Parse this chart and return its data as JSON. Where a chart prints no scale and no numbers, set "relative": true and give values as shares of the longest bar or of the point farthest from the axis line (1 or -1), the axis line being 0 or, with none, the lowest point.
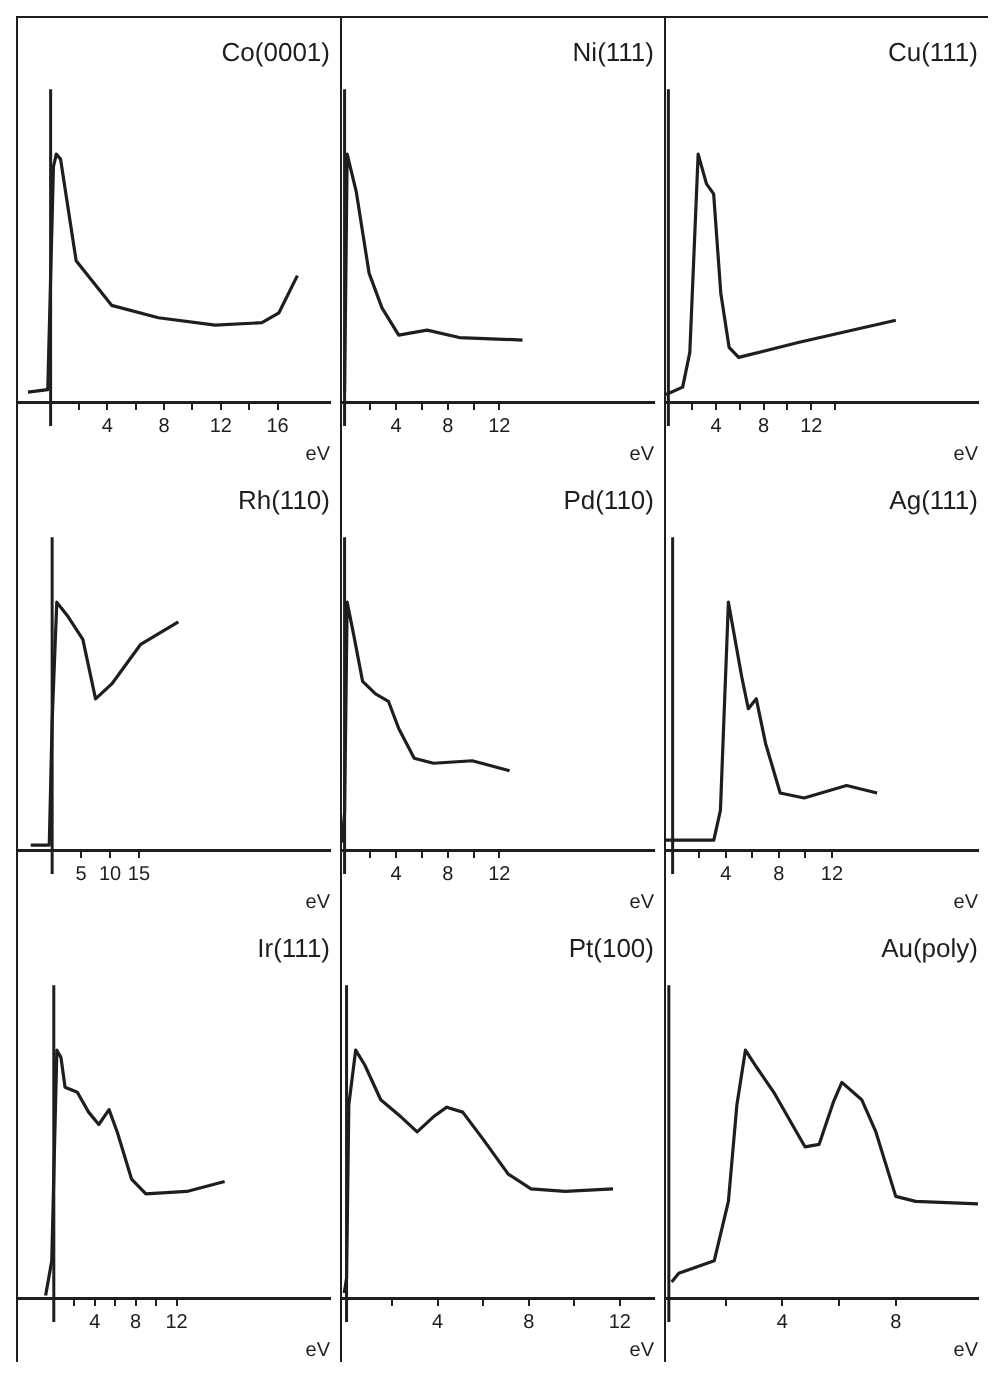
{
  "chart_data": [
    {
      "type": "line",
      "title": "Co(0001)",
      "xlabel": "eV",
      "relative": true,
      "marker": "none",
      "color": "#1e1e1e",
      "xlim": [
        -2.3,
        19.7
      ],
      "xticks": [
        {
          "value": 2,
          "label": null
        },
        4,
        {
          "value": 6,
          "label": null
        },
        8,
        {
          "value": 10,
          "label": null
        },
        12,
        {
          "value": 14,
          "label": null
        },
        16
      ],
      "ref_lines": [
        {
          "axis": "x",
          "value": 0
        }
      ],
      "x": [
        -1.6,
        -0.2,
        0.2,
        0.4,
        0.7,
        1.8,
        4.3,
        7.6,
        11.6,
        14.9,
        16.1,
        17.4
      ],
      "values": [
        0.04,
        0.05,
        0.95,
        1.0,
        0.98,
        0.57,
        0.39,
        0.34,
        0.31,
        0.32,
        0.36,
        0.51
      ]
    },
    {
      "type": "line",
      "title": "Ni(111)",
      "xlabel": "eV",
      "relative": true,
      "marker": "none",
      "color": "#1e1e1e",
      "xlim": [
        -0.2,
        24
      ],
      "xticks": [
        {
          "value": 2,
          "label": null
        },
        4,
        {
          "value": 6,
          "label": null
        },
        8,
        {
          "value": 10,
          "label": null
        },
        12
      ],
      "ref_lines": [
        {
          "axis": "x",
          "value": 0
        }
      ],
      "x": [
        0,
        0.2,
        0.9,
        1.9,
        2.9,
        4.2,
        6.4,
        8.9,
        13.8
      ],
      "values": [
        0.04,
        1.0,
        0.85,
        0.52,
        0.38,
        0.27,
        0.29,
        0.26,
        0.25
      ]
    },
    {
      "type": "line",
      "title": "Cu(111)",
      "xlabel": "eV",
      "relative": true,
      "marker": "none",
      "color": "#1e1e1e",
      "xlim": [
        -0.2,
        26
      ],
      "xticks": [
        {
          "value": 2,
          "label": null
        },
        4,
        {
          "value": 6,
          "label": null
        },
        8,
        {
          "value": 10,
          "label": null
        },
        12,
        {
          "value": 14,
          "label": null
        }
      ],
      "ref_lines": [
        {
          "axis": "x",
          "value": 0
        }
      ],
      "x": [
        -0.2,
        1.2,
        1.8,
        2.5,
        3.2,
        3.8,
        4.4,
        5.1,
        5.9,
        10.9,
        19.1
      ],
      "values": [
        0.03,
        0.06,
        0.2,
        1.0,
        0.88,
        0.84,
        0.44,
        0.22,
        0.18,
        0.24,
        0.33
      ]
    },
    {
      "type": "line",
      "title": "Rh(110)",
      "xlabel": "eV",
      "relative": true,
      "marker": "none",
      "color": "#1e1e1e",
      "xlim": [
        -5.9,
        48
      ],
      "xticks": [
        5,
        10,
        15
      ],
      "ref_lines": [
        {
          "axis": "x",
          "value": 0
        }
      ],
      "x": [
        -3.7,
        -0.5,
        0,
        0.8,
        2.8,
        5.3,
        7.5,
        10.3,
        15.3,
        21.8
      ],
      "values": [
        0.02,
        0.02,
        0.52,
        1.0,
        0.94,
        0.85,
        0.61,
        0.67,
        0.83,
        0.92
      ]
    },
    {
      "type": "line",
      "title": "Pd(110)",
      "xlabel": "eV",
      "relative": true,
      "marker": "none",
      "color": "#1e1e1e",
      "xlim": [
        -0.2,
        24
      ],
      "xticks": [
        {
          "value": 2,
          "label": null
        },
        4,
        {
          "value": 6,
          "label": null
        },
        8,
        {
          "value": 10,
          "label": null
        },
        12
      ],
      "ref_lines": [
        {
          "axis": "x",
          "value": 0
        }
      ],
      "x": [
        -0.2,
        0,
        0.2,
        0.7,
        1.4,
        2.4,
        3.4,
        4.2,
        5.4,
        6.9,
        9.9,
        12.8
      ],
      "values": [
        0.03,
        0.15,
        1.0,
        0.87,
        0.68,
        0.63,
        0.6,
        0.49,
        0.37,
        0.35,
        0.36,
        0.32
      ]
    },
    {
      "type": "line",
      "title": "Ag(111)",
      "xlabel": "eV",
      "relative": true,
      "marker": "none",
      "color": "#1e1e1e",
      "xlim": [
        -0.5,
        23
      ],
      "xticks": [
        {
          "value": 2,
          "label": null
        },
        4,
        {
          "value": 6,
          "label": null
        },
        8,
        {
          "value": 10,
          "label": null
        },
        12
      ],
      "ref_lines": [
        {
          "axis": "x",
          "value": 0
        }
      ],
      "x": [
        -0.5,
        3.1,
        3.6,
        4.2,
        5.2,
        5.7,
        6.3,
        7.0,
        8.1,
        9.9,
        13.1,
        15.4
      ],
      "values": [
        0.04,
        0.04,
        0.16,
        1.0,
        0.7,
        0.57,
        0.61,
        0.43,
        0.23,
        0.21,
        0.26,
        0.23
      ]
    },
    {
      "type": "line",
      "title": "Ir(111)",
      "xlabel": "eV",
      "relative": true,
      "marker": "none",
      "color": "#1e1e1e",
      "xlim": [
        -3.5,
        27
      ],
      "xticks": [
        {
          "value": 2,
          "label": null
        },
        4,
        {
          "value": 6,
          "label": null
        },
        8,
        {
          "value": 10,
          "label": null
        },
        12
      ],
      "ref_lines": [
        {
          "axis": "x",
          "value": 0
        }
      ],
      "x": [
        -0.8,
        -0.2,
        0.3,
        0.7,
        1.1,
        2.3,
        3.4,
        4.4,
        5.4,
        6.2,
        7.6,
        9.0,
        13.0,
        16.7
      ],
      "values": [
        0.01,
        0.15,
        1.0,
        0.97,
        0.85,
        0.83,
        0.75,
        0.7,
        0.76,
        0.67,
        0.48,
        0.42,
        0.43,
        0.47
      ]
    },
    {
      "type": "line",
      "title": "Pt(100)",
      "xlabel": "eV",
      "relative": true,
      "marker": "none",
      "color": "#1e1e1e",
      "xlim": [
        -0.2,
        13.5
      ],
      "xticks": [
        {
          "value": 2,
          "label": null
        },
        4,
        {
          "value": 6,
          "label": null
        },
        8,
        {
          "value": 10,
          "label": null
        },
        12
      ],
      "ref_lines": [
        {
          "axis": "x",
          "value": 0
        }
      ],
      "x": [
        -0.1,
        0,
        0.1,
        0.4,
        0.8,
        1.5,
        2.4,
        3.1,
        3.8,
        4.4,
        5.1,
        6.0,
        7.1,
        8.1,
        9.6,
        11.7
      ],
      "values": [
        0.02,
        0.08,
        0.78,
        1.0,
        0.94,
        0.8,
        0.73,
        0.67,
        0.73,
        0.77,
        0.75,
        0.64,
        0.5,
        0.44,
        0.43,
        0.44
      ]
    },
    {
      "type": "line",
      "title": "Au(poly)",
      "xlabel": "eV",
      "relative": true,
      "marker": "none",
      "color": "#1e1e1e",
      "xlim": [
        -0.1,
        10.9
      ],
      "xticks": [
        {
          "value": 2,
          "label": null
        },
        4,
        {
          "value": 6,
          "label": null
        },
        8
      ],
      "ref_lines": [
        {
          "axis": "x",
          "value": 0
        }
      ],
      "x": [
        0.1,
        0.35,
        1.6,
        2.1,
        2.4,
        2.7,
        3.1,
        3.7,
        4.4,
        4.8,
        5.3,
        5.8,
        6.1,
        6.8,
        7.3,
        8.0,
        8.7,
        10.9
      ],
      "values": [
        0.065,
        0.1,
        0.15,
        0.39,
        0.78,
        1.0,
        0.93,
        0.83,
        0.69,
        0.61,
        0.62,
        0.79,
        0.87,
        0.8,
        0.67,
        0.41,
        0.39,
        0.38
      ]
    }
  ]
}
